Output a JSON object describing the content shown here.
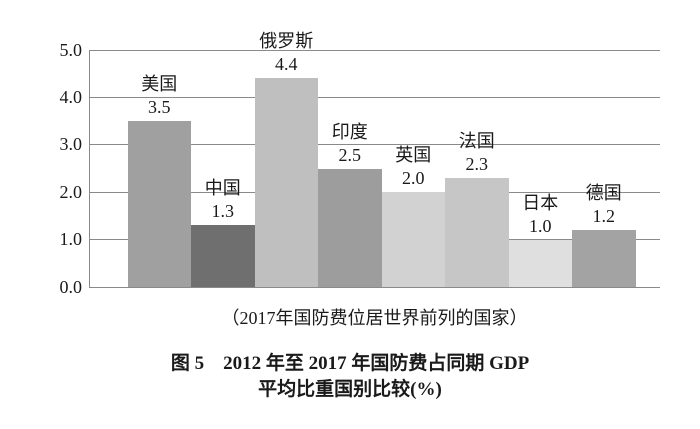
{
  "figure": {
    "note": "（2017年国防费位居世界前列的国家）",
    "title_line1": "图 5　2012 年至 2017 年国防费占同期 GDP",
    "title_line2": "平均比重国别比较(%)"
  },
  "chart_data": {
    "type": "bar",
    "title": "图 5　2012 年至 2017 年国防费占同期 GDP 平均比重国别比较(%)",
    "annotation": "（2017年国防费位居世界前列的国家）",
    "categories": [
      "美国",
      "中国",
      "俄罗斯",
      "印度",
      "英国",
      "法国",
      "日本",
      "德国"
    ],
    "category_slugs": [
      "usa",
      "china",
      "russia",
      "india",
      "uk",
      "france",
      "japan",
      "germany"
    ],
    "values": [
      3.5,
      1.3,
      4.4,
      2.5,
      2.0,
      2.3,
      1.0,
      1.2
    ],
    "value_labels": [
      "3.5",
      "1.3",
      "4.4",
      "2.5",
      "2.0",
      "2.3",
      "1.0",
      "1.2"
    ],
    "bar_colors": [
      "#a0a0a0",
      "#6f6f6f",
      "#bfbfbf",
      "#9d9d9d",
      "#d2d2d2",
      "#c6c6c6",
      "#dfdfdf",
      "#a3a3a3"
    ],
    "xlabel": "",
    "ylabel": "",
    "ylim": [
      0.0,
      5.0
    ],
    "yticks": [
      "5.0",
      "4.0",
      "3.0",
      "2.0",
      "1.0",
      "0.0"
    ],
    "grid": true,
    "legend": false
  },
  "colors": {
    "gridline": "#8a8a8a",
    "axis": "#8a8a8a",
    "text": "#1a1a1a",
    "background": "#ffffff"
  }
}
